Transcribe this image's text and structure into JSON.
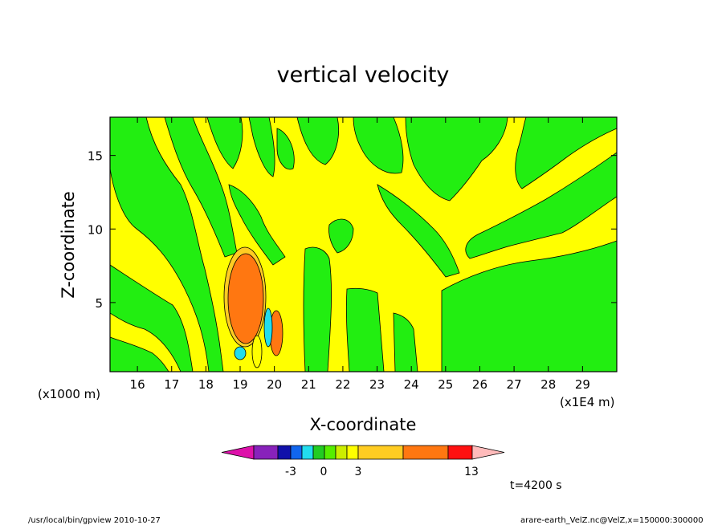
{
  "chart_data": {
    "type": "heatmap",
    "title": "vertical velocity",
    "xlabel": "X-coordinate",
    "ylabel": "Z-coordinate",
    "x_unit_left": "(x1000 m)",
    "x_unit_right": "(x1E4 m)",
    "xlim": [
      15.2,
      30.0
    ],
    "ylim": [
      0.3,
      17.6
    ],
    "x_ticks": [
      "16",
      "17",
      "18",
      "19",
      "20",
      "21",
      "22",
      "23",
      "24",
      "25",
      "26",
      "27",
      "28",
      "29"
    ],
    "y_ticks": [
      "5",
      "10",
      "15"
    ],
    "legend": {
      "colors": [
        "#dd11aa",
        "#8822bb",
        "#1111aa",
        "#1166ee",
        "#22ddee",
        "#22cc22",
        "#55ee00",
        "#ccee00",
        "#ffff00",
        "#ffcc22",
        "#ff7711",
        "#ff1111",
        "#ff7777",
        "#ffbbbb"
      ],
      "labels": [
        "-3",
        "0",
        "3",
        "13"
      ]
    },
    "time_label": "t=4200 s"
  },
  "footer": {
    "left": "/usr/local/bin/gpview   2010-10-27",
    "right": "arare-earth_VelZ.nc@VelZ,x=150000:300000"
  }
}
